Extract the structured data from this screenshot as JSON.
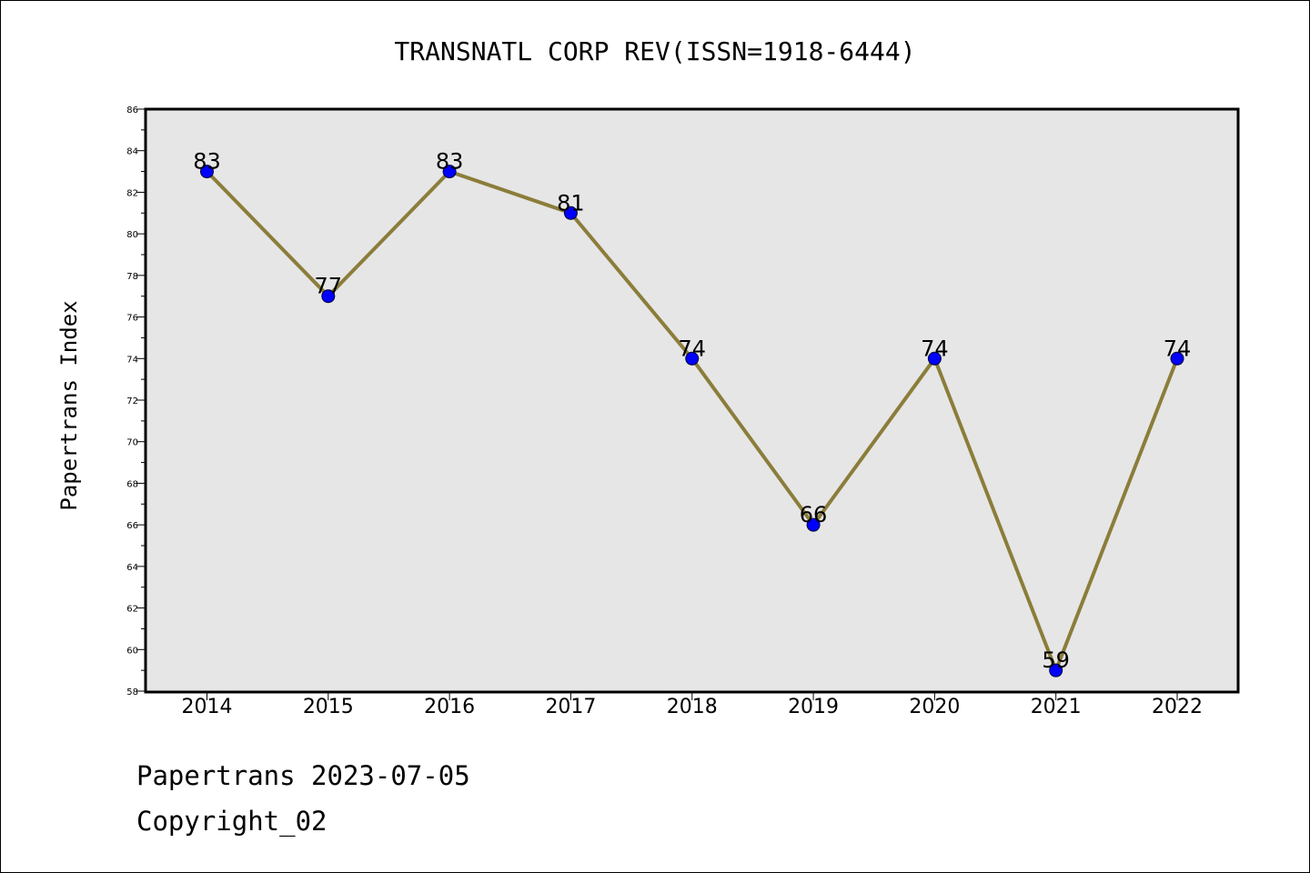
{
  "chart_data": {
    "type": "line",
    "title": "TRANSNATL CORP REV(ISSN=1918-6444)",
    "xlabel": "",
    "ylabel": "Papertrans Index",
    "categories": [
      "2014",
      "2015",
      "2016",
      "2017",
      "2018",
      "2019",
      "2020",
      "2021",
      "2022"
    ],
    "series": [
      {
        "values": [
          83,
          77,
          83,
          81,
          74,
          66,
          74,
          59,
          74
        ]
      }
    ],
    "data_labels": [
      "83",
      "77",
      "83",
      "81",
      "74",
      "66",
      "74",
      "59",
      "74"
    ],
    "ylim": [
      58,
      86
    ],
    "y_ticks": [
      58,
      60,
      62,
      64,
      66,
      68,
      70,
      72,
      74,
      76,
      78,
      80,
      82,
      84,
      86
    ],
    "grid": false,
    "legend": "none",
    "colors": {
      "line": "#8b7d3a",
      "marker": "#0000ff",
      "plot_background": "#e6e6e6"
    }
  },
  "footer": {
    "line1": "Papertrans 2023-07-05",
    "line2": "Copyright_02"
  }
}
